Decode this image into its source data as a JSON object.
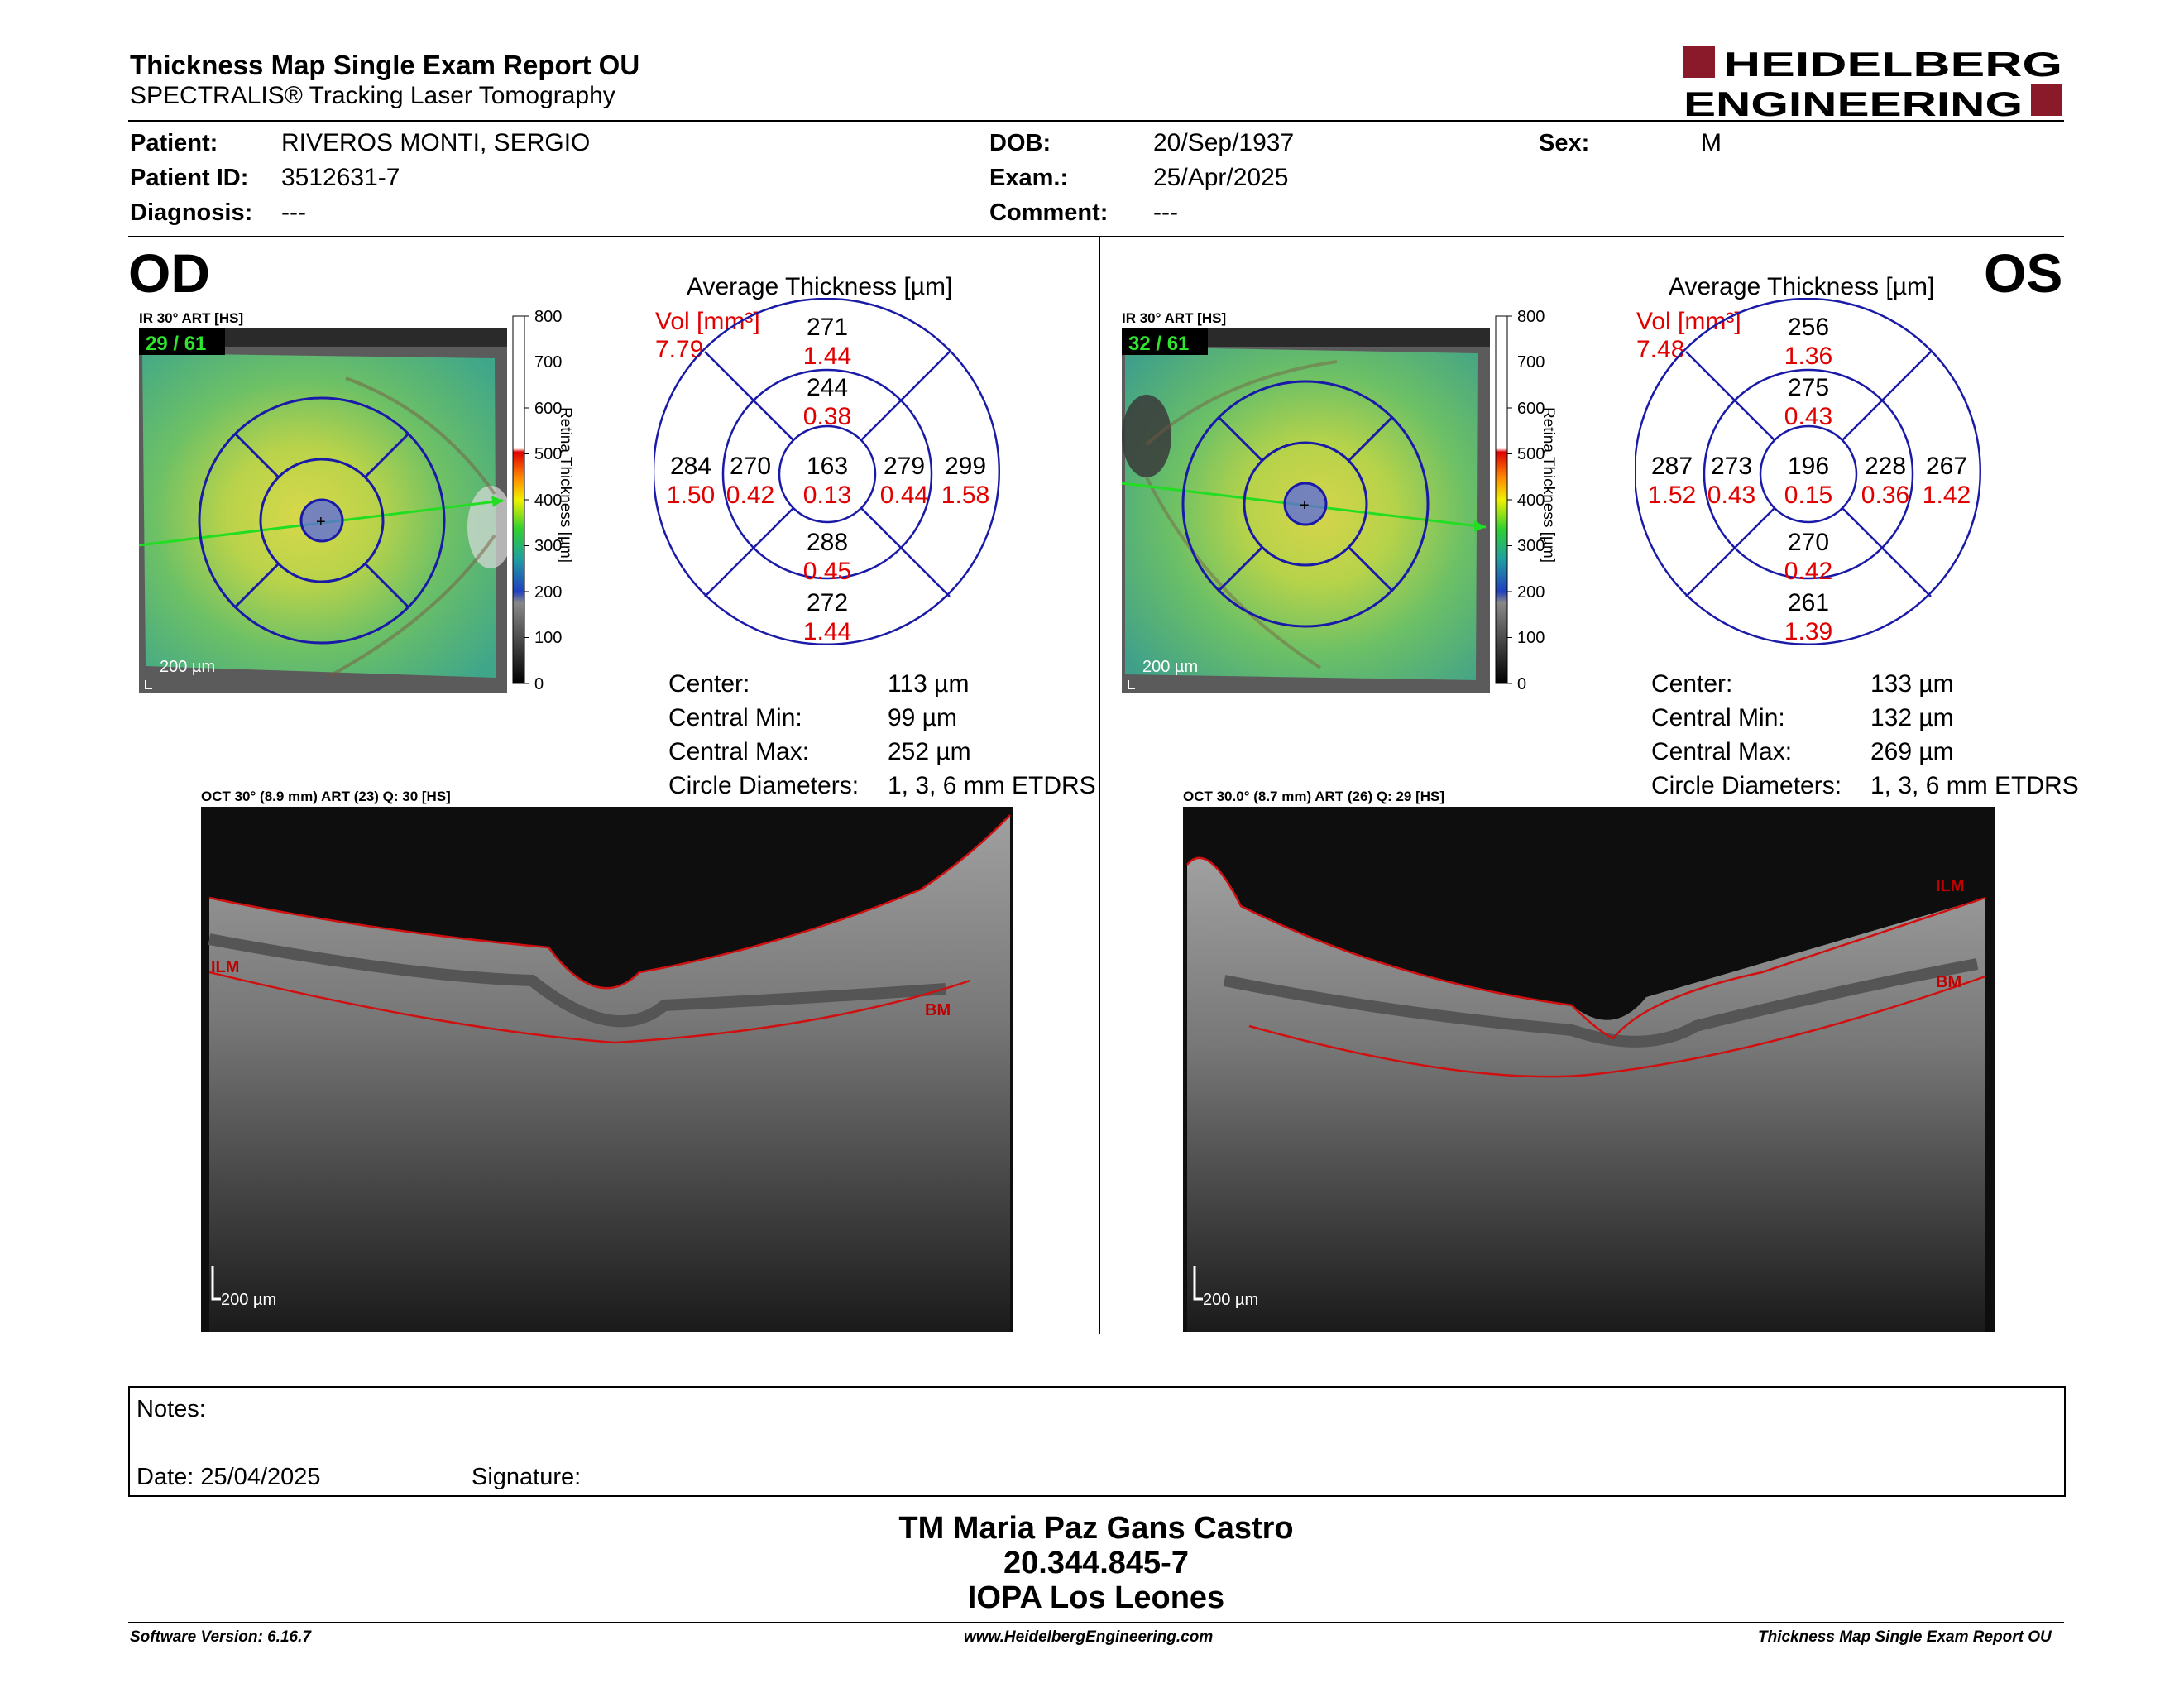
{
  "header": {
    "title": "Thickness Map Single Exam Report OU",
    "subtitle": "SPECTRALIS® Tracking Laser Tomography",
    "logo_line1": "HEIDELBERG",
    "logo_line2": "ENGINEERING"
  },
  "patient": {
    "patient_label": "Patient:",
    "patient_value": "RIVEROS MONTI, SERGIO",
    "id_label": "Patient ID:",
    "id_value": "3512631-7",
    "diag_label": "Diagnosis:",
    "diag_value": "---",
    "dob_label": "DOB:",
    "dob_value": "20/Sep/1937",
    "exam_label": "Exam.:",
    "exam_value": "25/Apr/2025",
    "comment_label": "Comment:",
    "comment_value": "---",
    "sex_label": "Sex:",
    "sex_value": "M"
  },
  "scale": {
    "ticks": [
      "800",
      "700",
      "600",
      "500",
      "400",
      "300",
      "200",
      "100",
      "0"
    ],
    "label": "Retina Thickness [µm]"
  },
  "od": {
    "eye": "OD",
    "ir_label": "IR 30° ART [HS]",
    "frame": "29 / 61",
    "scalebar": "200 µm",
    "avg_title": "Average Thickness [µm]",
    "vol_label": "Vol [mm³]",
    "vol_value": "7.79",
    "grid": {
      "outer_sup": "271",
      "outer_sup_v": "1.44",
      "inner_sup": "244",
      "inner_sup_v": "0.38",
      "outer_tmp": "284",
      "outer_tmp_v": "1.50",
      "inner_tmp": "270",
      "inner_tmp_v": "0.42",
      "center": "163",
      "center_v": "0.13",
      "inner_nas": "279",
      "inner_nas_v": "0.44",
      "outer_nas": "299",
      "outer_nas_v": "1.58",
      "inner_inf": "288",
      "inner_inf_v": "0.45",
      "outer_inf": "272",
      "outer_inf_v": "1.44"
    },
    "stats": {
      "center_label": "Center:",
      "center_value": "113 µm",
      "min_label": "Central Min:",
      "min_value": "99 µm",
      "max_label": "Central Max:",
      "max_value": "252 µm",
      "diam_label": "Circle Diameters:",
      "diam_value": "1, 3, 6 mm ETDRS"
    },
    "oct_label": "OCT 30° (8.9 mm) ART (23) Q: 30 [HS]",
    "oct_scalebar": "200 µm",
    "layer_top": "ILM",
    "layer_bottom": "BM"
  },
  "os": {
    "eye": "OS",
    "ir_label": "IR 30° ART [HS]",
    "frame": "32 / 61",
    "scalebar": "200 µm",
    "avg_title": "Average Thickness [µm]",
    "vol_label": "Vol [mm³]",
    "vol_value": "7.48",
    "grid": {
      "outer_sup": "256",
      "outer_sup_v": "1.36",
      "inner_sup": "275",
      "inner_sup_v": "0.43",
      "outer_tmp": "287",
      "outer_tmp_v": "1.52",
      "inner_tmp": "273",
      "inner_tmp_v": "0.43",
      "center": "196",
      "center_v": "0.15",
      "inner_nas": "228",
      "inner_nas_v": "0.36",
      "outer_nas": "267",
      "outer_nas_v": "1.42",
      "inner_inf": "270",
      "inner_inf_v": "0.42",
      "outer_inf": "261",
      "outer_inf_v": "1.39"
    },
    "stats": {
      "center_label": "Center:",
      "center_value": "133 µm",
      "min_label": "Central Min:",
      "min_value": "132 µm",
      "max_label": "Central Max:",
      "max_value": "269 µm",
      "diam_label": "Circle Diameters:",
      "diam_value": "1, 3, 6 mm ETDRS"
    },
    "oct_label": "OCT 30.0° (8.7 mm) ART (26) Q: 29 [HS]",
    "oct_scalebar": "200 µm",
    "layer_top": "ILM",
    "layer_bottom": "BM"
  },
  "notes": {
    "notes_label": "Notes:",
    "date_label": "Date: 25/04/2025",
    "signature_label": "Signature:"
  },
  "signature_block": {
    "line1": "TM Maria Paz Gans Castro",
    "line2": "20.344.845-7",
    "line3": "IOPA Los Leones"
  },
  "footer": {
    "software": "Software Version: 6.16.7",
    "website": "www.HeidelbergEngineering.com",
    "report": "Thickness Map Single Exam Report OU"
  },
  "colors": {
    "value_red": "#e00000",
    "grid_blue": "#1a1aa8",
    "logo_red": "#8a1a2a"
  }
}
